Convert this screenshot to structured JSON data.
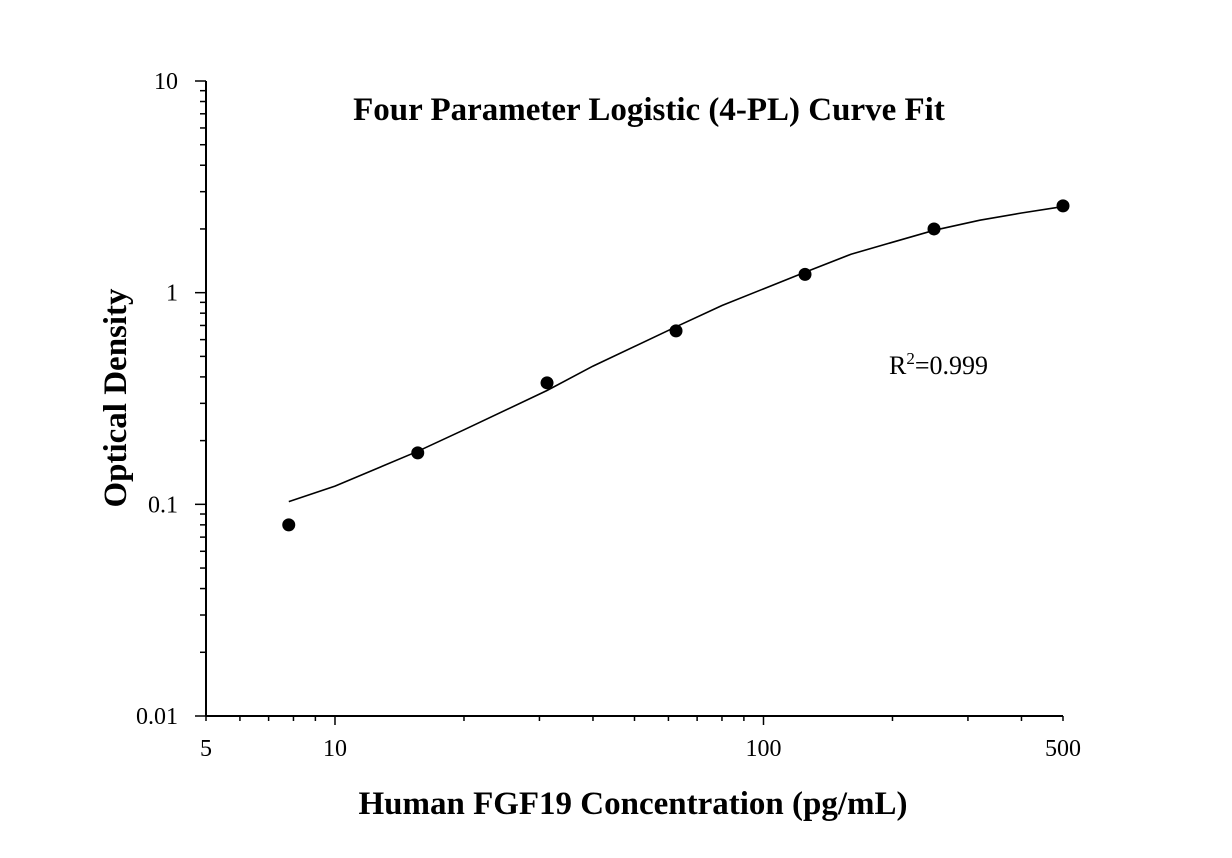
{
  "chart_data": {
    "type": "scatter",
    "title": "Four Parameter Logistic (4-PL) Curve Fit",
    "xlabel": "Human FGF19 Concentration (pg/mL)",
    "ylabel": "Optical Density",
    "x_scale": "log",
    "y_scale": "log",
    "xlim": [
      5,
      500
    ],
    "ylim": [
      0.01,
      10
    ],
    "x_ticks": [
      5,
      10,
      100,
      500
    ],
    "x_tick_labels": [
      "5",
      "10",
      "100",
      "500"
    ],
    "y_ticks": [
      0.01,
      0.1,
      1,
      10
    ],
    "y_tick_labels": [
      "0.01",
      "0.1",
      "1",
      "10"
    ],
    "grid": false,
    "annotation": {
      "prefix": "R",
      "superscript": "2",
      "text": "=0.999"
    },
    "series": [
      {
        "points": [
          {
            "x": 7.8,
            "y": 0.08
          },
          {
            "x": 15.6,
            "y": 0.175
          },
          {
            "x": 31.25,
            "y": 0.375
          },
          {
            "x": 62.5,
            "y": 0.66
          },
          {
            "x": 125,
            "y": 1.22
          },
          {
            "x": 250,
            "y": 2.0
          },
          {
            "x": 500,
            "y": 2.57
          }
        ]
      }
    ],
    "fit_curve": {
      "type": "4PL",
      "x": [
        7.8,
        10,
        15.6,
        20,
        31.25,
        40,
        62.5,
        80,
        125,
        160,
        250,
        320,
        400,
        500
      ],
      "y": [
        0.103,
        0.122,
        0.178,
        0.225,
        0.345,
        0.45,
        0.69,
        0.87,
        1.25,
        1.52,
        1.97,
        2.2,
        2.38,
        2.55
      ]
    },
    "colors": {
      "marker": "#000000",
      "curve": "#000000",
      "axis": "#000000"
    }
  }
}
